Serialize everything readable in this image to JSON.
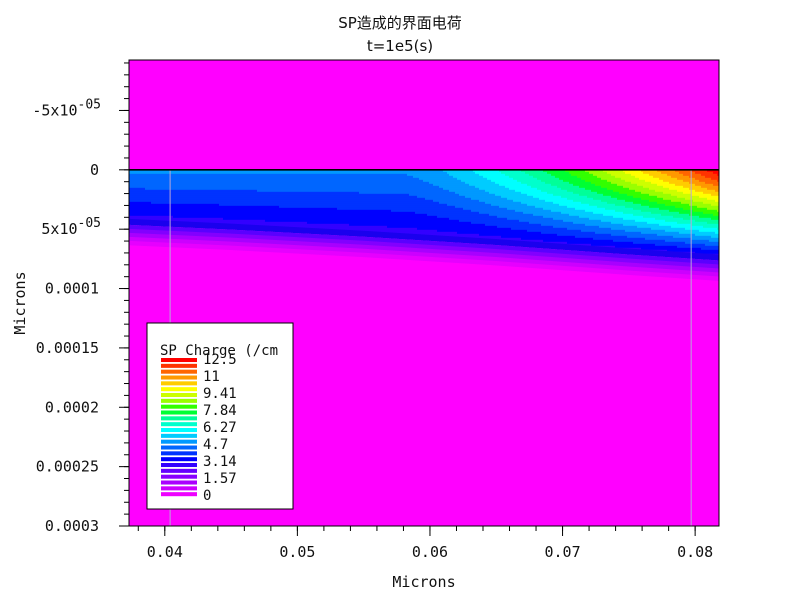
{
  "chart_data": {
    "type": "heatmap",
    "title": "SP造成的界面电荷",
    "subtitle": "t=1e5(s)",
    "xlabel": "Microns",
    "ylabel": "Microns",
    "xlim": [
      0.0373,
      0.0818
    ],
    "ylim": [
      -9.25e-05,
      0.0003
    ],
    "y_inverted": true,
    "x_ticks": [
      {
        "value": 0.04,
        "label": "0.04"
      },
      {
        "value": 0.05,
        "label": "0.05"
      },
      {
        "value": 0.06,
        "label": "0.06"
      },
      {
        "value": 0.07,
        "label": "0.07"
      },
      {
        "value": 0.08,
        "label": "0.08"
      }
    ],
    "y_ticks": [
      {
        "value": -5e-05,
        "label": "-5x10",
        "exp": "-05"
      },
      {
        "value": 0,
        "label": "0",
        "exp": ""
      },
      {
        "value": 5e-05,
        "label": "5x10",
        "exp": "-05"
      },
      {
        "value": 0.0001,
        "label": "0.0001",
        "exp": ""
      },
      {
        "value": 0.00015,
        "label": "0.00015",
        "exp": ""
      },
      {
        "value": 0.0002,
        "label": "0.0002",
        "exp": ""
      },
      {
        "value": 0.00025,
        "label": "0.00025",
        "exp": ""
      },
      {
        "value": 0.0003,
        "label": "0.0003",
        "exp": ""
      }
    ],
    "interface_y": 0,
    "electrode_edges_x": [
      0.0404,
      0.0797
    ],
    "charge_layer": {
      "bottom_boundary": [
        {
          "x": 0.0373,
          "y": 4.3e-05
        },
        {
          "x": 0.045,
          "y": 4.7e-05
        },
        {
          "x": 0.055,
          "y": 5.3e-05
        },
        {
          "x": 0.065,
          "y": 6e-05
        },
        {
          "x": 0.075,
          "y": 6.8e-05
        },
        {
          "x": 0.0818,
          "y": 7.3e-05
        }
      ],
      "peak_points": [
        {
          "x": 0.0655,
          "y": 0.0,
          "value": 7.84
        },
        {
          "x": 0.0715,
          "y": 0.0,
          "value": 9.41
        },
        {
          "x": 0.0775,
          "y": 0.0,
          "value": 11.0
        },
        {
          "x": 0.081,
          "y": 0.0,
          "value": 12.5
        }
      ]
    },
    "colorbar": {
      "title": "SP Charge (/cm",
      "labels": [
        "12.5",
        "11",
        "9.41",
        "7.84",
        "6.27",
        "4.7",
        "3.14",
        "1.57",
        "0"
      ],
      "colors": [
        "#ff0000",
        "#ff3300",
        "#ff6600",
        "#ff9900",
        "#ffcc00",
        "#ffff00",
        "#ccff00",
        "#99ff00",
        "#33ff00",
        "#00ff33",
        "#00ff99",
        "#00ffcc",
        "#00ffff",
        "#00ccff",
        "#0099ff",
        "#0066ff",
        "#0033ff",
        "#0000ff",
        "#3300ff",
        "#6600ff",
        "#8800ff",
        "#aa00ff",
        "#cc00ff",
        "#ee00ff"
      ],
      "background_color": "#ff00ff",
      "legend_position": "bottom-left"
    }
  }
}
